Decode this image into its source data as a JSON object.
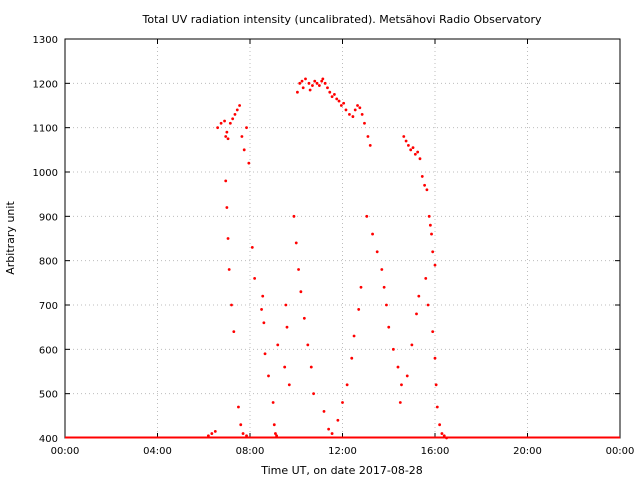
{
  "chart_data": {
    "type": "scatter",
    "title": "Total UV radiation intensity (uncalibrated). Metsähovi Radio Observatory",
    "xlabel": "Time UT, on date 2017-08-28",
    "ylabel": "Arbitrary unit",
    "xlim_hours": [
      0,
      24
    ],
    "ylim": [
      400,
      1300
    ],
    "x_ticks": [
      {
        "hour": 0,
        "label": "00:00"
      },
      {
        "hour": 4,
        "label": "04:00"
      },
      {
        "hour": 8,
        "label": "08:00"
      },
      {
        "hour": 12,
        "label": "12:00"
      },
      {
        "hour": 16,
        "label": "16:00"
      },
      {
        "hour": 20,
        "label": "20:00"
      },
      {
        "hour": 24,
        "label": "00:00"
      }
    ],
    "y_ticks": [
      400,
      500,
      600,
      700,
      800,
      900,
      1000,
      1100,
      1200,
      1300
    ],
    "grid": true,
    "legend": "none",
    "marker_color": "#ff0000",
    "series": [
      {
        "x_hours": [
          6.2,
          6.35,
          6.5,
          6.6,
          6.75,
          6.9,
          6.95,
          7.0,
          7.05,
          7.15,
          7.25,
          7.35,
          7.45,
          7.55,
          7.65,
          7.75,
          7.85,
          7.95,
          6.95,
          7.0,
          7.05,
          7.1,
          7.2,
          7.3,
          7.5,
          7.6,
          7.7,
          7.85,
          8.1,
          8.2,
          8.5,
          8.55,
          8.6,
          8.65,
          8.8,
          9.0,
          9.05,
          9.1,
          9.15,
          9.2,
          9.5,
          9.55,
          9.6,
          9.7,
          10.05,
          10.15,
          10.25,
          10.3,
          10.4,
          10.55,
          10.6,
          10.7,
          10.8,
          10.9,
          11.0,
          11.1,
          11.15,
          11.25,
          11.35,
          11.45,
          11.55,
          11.65,
          11.75,
          11.85,
          11.95,
          12.05,
          12.15,
          12.3,
          12.45,
          12.55,
          12.65,
          12.75,
          12.85,
          12.95,
          13.1,
          13.2,
          9.9,
          10.0,
          10.1,
          10.2,
          10.35,
          10.5,
          10.65,
          10.75,
          11.2,
          11.4,
          11.55,
          11.8,
          12.0,
          12.2,
          12.4,
          12.5,
          12.7,
          12.8,
          13.05,
          13.3,
          13.5,
          13.7,
          13.8,
          13.9,
          14.0,
          14.2,
          14.4,
          14.55,
          14.65,
          14.75,
          14.85,
          14.95,
          15.05,
          15.15,
          15.25,
          15.35,
          15.45,
          15.55,
          15.65,
          15.75,
          15.8,
          15.85,
          15.9,
          16.0,
          14.5,
          14.8,
          15.0,
          15.2,
          15.3,
          15.6,
          15.7,
          15.9,
          16.0,
          16.05,
          16.1,
          16.2,
          16.3,
          16.4,
          16.5
        ],
        "y": [
          405,
          410,
          415,
          1100,
          1110,
          1115,
          1080,
          1090,
          1075,
          1110,
          1120,
          1130,
          1140,
          1150,
          1080,
          1050,
          1100,
          1020,
          980,
          920,
          850,
          780,
          700,
          640,
          470,
          430,
          410,
          405,
          830,
          760,
          690,
          720,
          660,
          590,
          540,
          480,
          430,
          410,
          405,
          610,
          560,
          700,
          650,
          520,
          1180,
          1200,
          1205,
          1190,
          1210,
          1200,
          1185,
          1195,
          1205,
          1200,
          1195,
          1205,
          1210,
          1200,
          1190,
          1180,
          1170,
          1175,
          1165,
          1160,
          1150,
          1155,
          1140,
          1130,
          1125,
          1140,
          1150,
          1145,
          1130,
          1110,
          1080,
          1060,
          900,
          840,
          780,
          730,
          670,
          610,
          560,
          500,
          460,
          420,
          410,
          440,
          480,
          520,
          580,
          630,
          690,
          740,
          900,
          860,
          820,
          780,
          740,
          700,
          650,
          600,
          560,
          520,
          1080,
          1070,
          1060,
          1050,
          1055,
          1040,
          1045,
          1030,
          990,
          970,
          960,
          900,
          880,
          860,
          820,
          790,
          480,
          540,
          610,
          680,
          720,
          760,
          700,
          640,
          580,
          520,
          470,
          430,
          410,
          405,
          400
        ]
      }
    ]
  }
}
